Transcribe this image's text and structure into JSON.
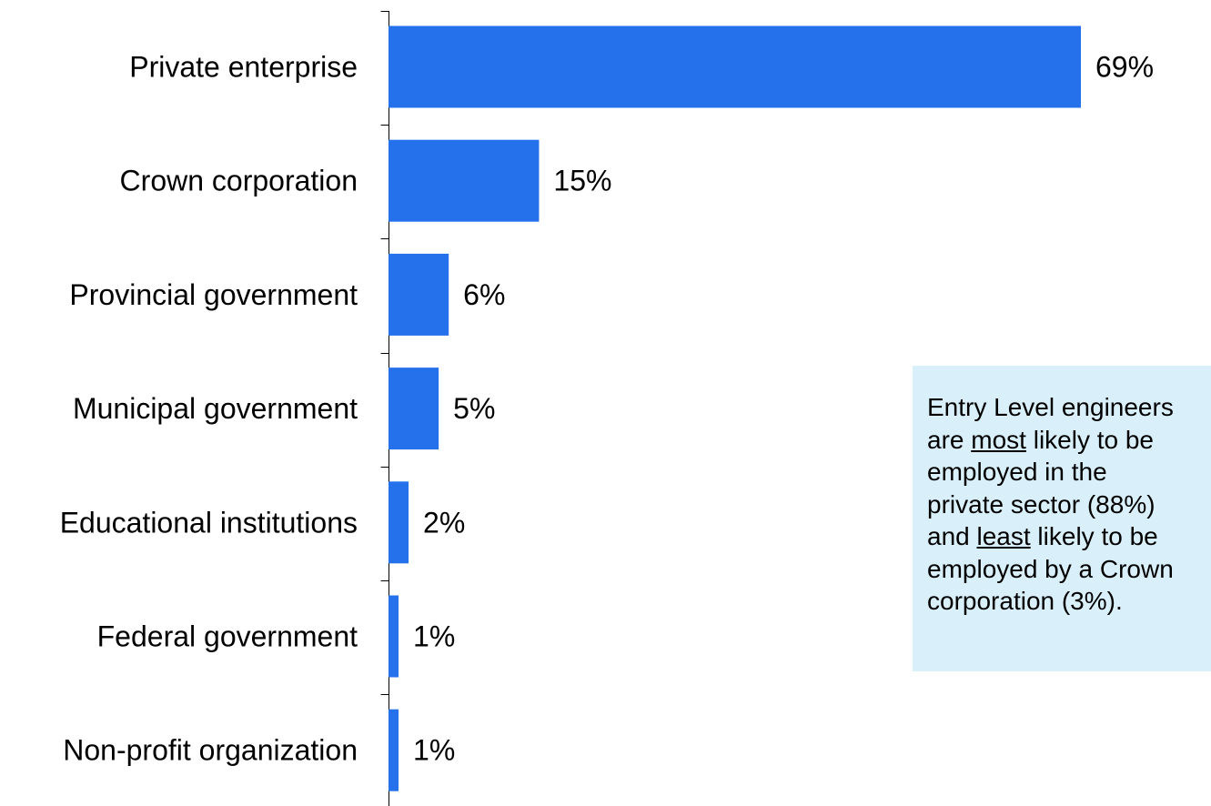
{
  "chart_data": {
    "type": "bar",
    "orientation": "horizontal",
    "categories": [
      "Private enterprise",
      "Crown corporation",
      "Provincial government",
      "Municipal government",
      "Educational institutions",
      "Federal government",
      "Non-profit organization"
    ],
    "values": [
      69,
      15,
      6,
      5,
      2,
      1,
      1
    ],
    "value_labels": [
      "69%",
      "15%",
      "6%",
      "5%",
      "2%",
      "1%",
      "1%"
    ],
    "unit": "%",
    "xlim": [
      0,
      69
    ],
    "grid": false,
    "legend": "none",
    "bar_color": "#2571eb"
  },
  "note": {
    "lines": [
      [
        {
          "text": "Entry Level engineers"
        }
      ],
      [
        {
          "text": "are "
        },
        {
          "text": "most",
          "underline": true
        },
        {
          "text": " likely to be"
        }
      ],
      [
        {
          "text": "employed in the"
        }
      ],
      [
        {
          "text": "private sector (88%)"
        }
      ],
      [
        {
          "text": "and "
        },
        {
          "text": "least",
          "underline": true
        },
        {
          "text": " likely to be"
        }
      ],
      [
        {
          "text": "employed by a Crown"
        }
      ],
      [
        {
          "text": "corporation (3%)."
        }
      ]
    ],
    "background": "#d9f0fb"
  }
}
